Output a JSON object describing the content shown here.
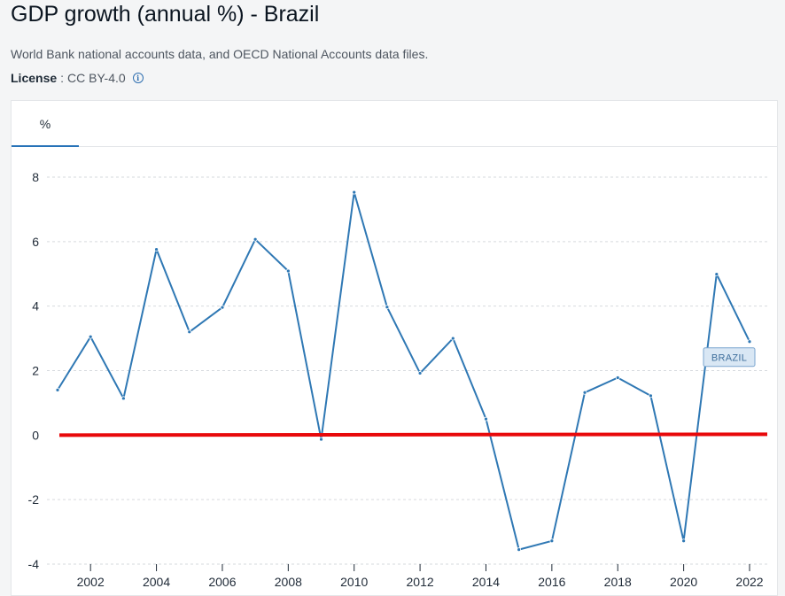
{
  "page": {
    "title": "GDP growth (annual %) - Brazil",
    "source": "World Bank national accounts data, and OECD National Accounts data files.",
    "license_label": "License",
    "license_sep": ":",
    "license_value": "CC BY-4.0",
    "info_icon": "info-icon"
  },
  "tabs": [
    {
      "label": "%",
      "active": true
    }
  ],
  "colors": {
    "line": "#2f78b4",
    "zero_line": "#e8090b",
    "grid": "#d6d9dd"
  },
  "chart_data": {
    "type": "line",
    "title": "GDP growth (annual %) - Brazil",
    "xlabel": "",
    "ylabel": "%",
    "xlim": [
      2001,
      2022
    ],
    "ylim": [
      -4,
      8
    ],
    "y_ticks": [
      8,
      6,
      4,
      2,
      0,
      -2,
      -4
    ],
    "x_ticks": [
      2002,
      2004,
      2006,
      2008,
      2010,
      2012,
      2014,
      2016,
      2018,
      2020,
      2022
    ],
    "grid": true,
    "reference_line": {
      "y": 0,
      "color": "#e8090b"
    },
    "series": [
      {
        "name": "BRAZIL",
        "x": [
          2001,
          2002,
          2003,
          2004,
          2005,
          2006,
          2007,
          2008,
          2009,
          2010,
          2011,
          2012,
          2013,
          2014,
          2015,
          2016,
          2017,
          2018,
          2019,
          2020,
          2021,
          2022
        ],
        "values": [
          1.4,
          3.05,
          1.14,
          5.76,
          3.2,
          3.96,
          6.07,
          5.09,
          -0.13,
          7.53,
          3.97,
          1.92,
          3.0,
          0.5,
          -3.55,
          -3.28,
          1.32,
          1.78,
          1.22,
          -3.28,
          4.99,
          2.9
        ]
      }
    ]
  }
}
